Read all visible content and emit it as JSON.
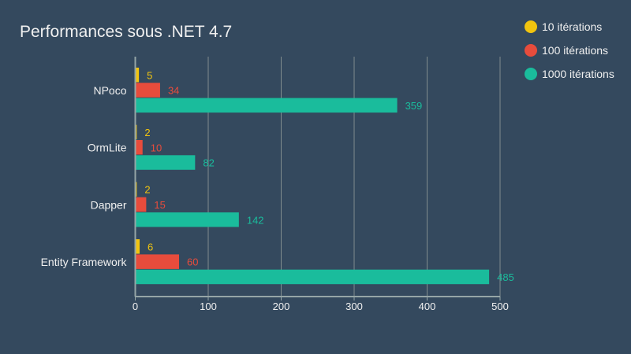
{
  "chart_data": {
    "type": "bar",
    "orientation": "horizontal",
    "title": "Performances sous .NET 4.7",
    "categories": [
      "NPoco",
      "OrmLite",
      "Dapper",
      "Entity Framework"
    ],
    "series": [
      {
        "name": "10 itérations",
        "color": "#f1c40f",
        "values": [
          5,
          2,
          2,
          6
        ]
      },
      {
        "name": "100 itérations",
        "color": "#e74c3c",
        "values": [
          34,
          10,
          15,
          60
        ]
      },
      {
        "name": "1000 itérations",
        "color": "#1abc9c",
        "values": [
          359,
          82,
          142,
          485
        ]
      }
    ],
    "xlim": [
      0,
      500
    ],
    "xticks": [
      0,
      100,
      200,
      300,
      400,
      500
    ],
    "grid": true,
    "legend_position": "top-right"
  },
  "colors": {
    "background": "#34495e",
    "grid": "#7f8c8d",
    "axis": "#95a5a6",
    "text": "#f0f0f0"
  }
}
